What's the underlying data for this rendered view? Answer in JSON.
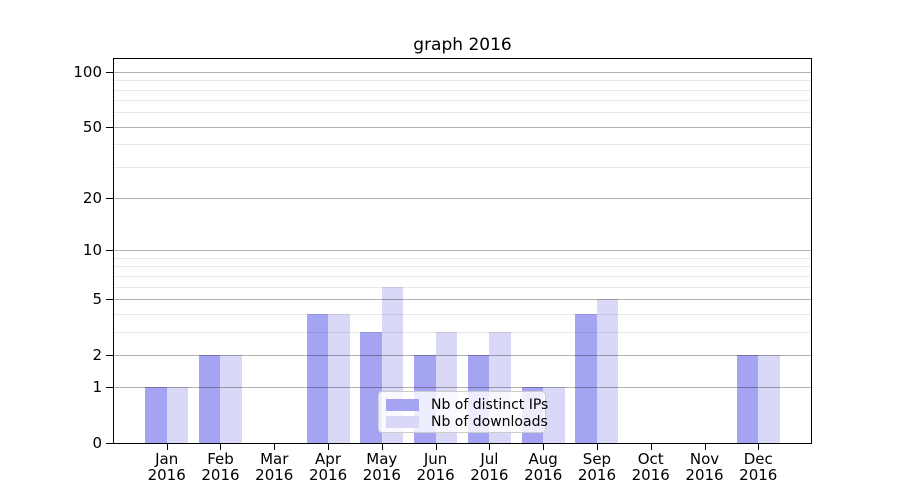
{
  "title": "graph 2016",
  "chart_data": {
    "type": "bar",
    "title": "graph 2016",
    "x": [
      "Jan",
      "Feb",
      "Mar",
      "Apr",
      "May",
      "Jun",
      "Jul",
      "Aug",
      "Sep",
      "Oct",
      "Nov",
      "Dec"
    ],
    "year_label": "2016",
    "series": [
      {
        "name": "Nb of distinct IPs",
        "color": "#a4a4f2",
        "values": [
          1,
          2,
          0,
          4,
          3,
          2,
          2,
          1,
          4,
          0,
          0,
          2
        ]
      },
      {
        "name": "Nb of downloads",
        "color": "#d9d9f7",
        "values": [
          1,
          2,
          0,
          4,
          6,
          3,
          3,
          1,
          5,
          0,
          0,
          2
        ]
      }
    ],
    "yscale": "log1p",
    "y_ticks": [
      0,
      1,
      2,
      5,
      10,
      20,
      50,
      100
    ],
    "y_tick_labels": [
      "0",
      "1",
      "2",
      "5",
      "10",
      "20",
      "50",
      "100"
    ],
    "y_minor_ticks": [
      3,
      4,
      6,
      7,
      8,
      9,
      30,
      40,
      60,
      70,
      80,
      90
    ],
    "ylim": [
      0,
      117
    ],
    "grid": "horizontal-major-and-minor",
    "legend_position": "lower-center"
  },
  "colors": {
    "bar_distinct_ips": "#a4a4f2",
    "bar_downloads": "#d9d9f7",
    "major_gridline": "#b0b0b0",
    "minor_gridline": "#e8e8e8",
    "axis": "#000000",
    "legend_border": "#cccccc",
    "background": "#ffffff"
  }
}
